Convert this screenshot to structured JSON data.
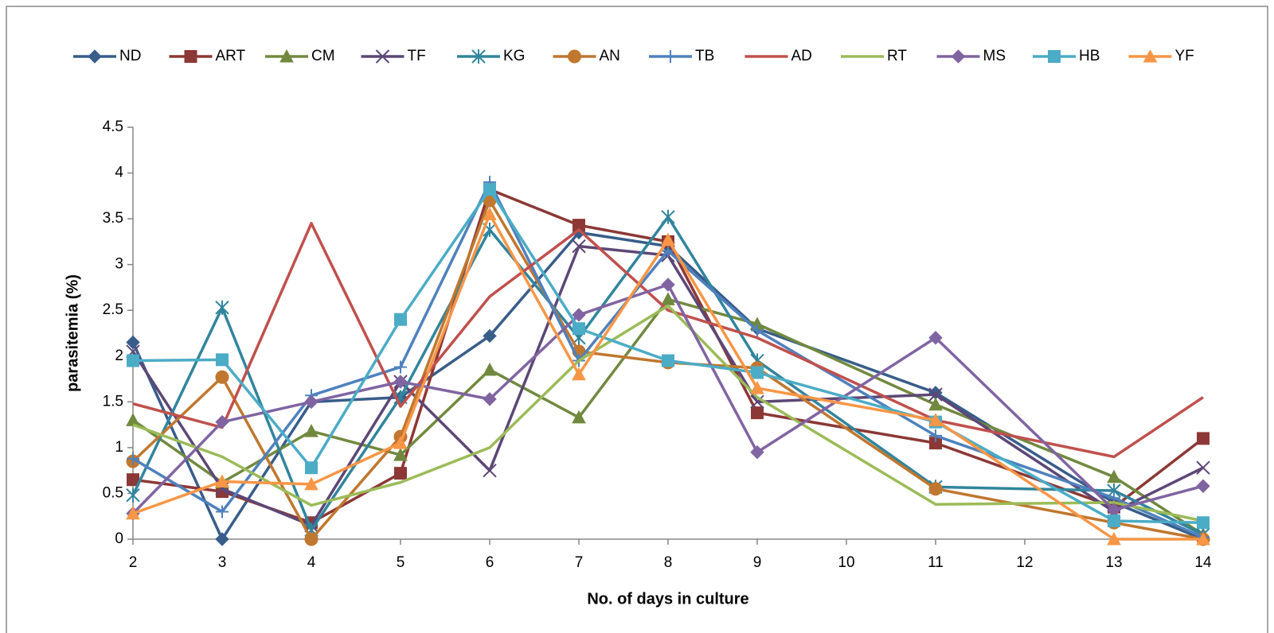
{
  "chart_data": {
    "type": "line",
    "x_label": "No. of days in culture",
    "y_label": "parasitemia (%)",
    "x": [
      2,
      3,
      4,
      5,
      6,
      7,
      8,
      9,
      11,
      13,
      14
    ],
    "xlim": [
      2,
      14
    ],
    "xticks": [
      2,
      3,
      4,
      5,
      6,
      7,
      8,
      9,
      10,
      11,
      12,
      13,
      14
    ],
    "ylim": [
      0,
      4.5
    ],
    "yticks": [
      0,
      0.5,
      1,
      1.5,
      2,
      2.5,
      3,
      3.5,
      4,
      4.5
    ],
    "grid": false,
    "legend": "top",
    "series": [
      {
        "name": "ND",
        "color": "#385d8a",
        "marker": "diamond",
        "values": [
          2.15,
          0,
          1.5,
          1.55,
          2.22,
          3.35,
          3.2,
          2.3,
          1.6,
          0.4,
          0
        ]
      },
      {
        "name": "ART",
        "color": "#8c3836",
        "marker": "square",
        "values": [
          0.65,
          0.52,
          0.18,
          0.72,
          3.82,
          3.43,
          3.25,
          1.38,
          1.05,
          0.35,
          1.1
        ]
      },
      {
        "name": "CM",
        "color": "#71893f",
        "marker": "triangle",
        "values": [
          1.3,
          0.62,
          1.18,
          0.92,
          1.85,
          1.33,
          2.62,
          2.35,
          1.47,
          0.68,
          0.05
        ]
      },
      {
        "name": "TF",
        "color": "#5c4776",
        "marker": "x",
        "values": [
          2.05,
          0.55,
          0.15,
          1.72,
          0.75,
          3.2,
          3.1,
          1.5,
          1.58,
          0.3,
          0.78
        ]
      },
      {
        "name": "KG",
        "color": "#31859c",
        "marker": "star",
        "values": [
          0.48,
          2.53,
          0.1,
          1.55,
          3.38,
          2.2,
          3.52,
          1.95,
          0.57,
          0.53,
          0.05
        ]
      },
      {
        "name": "AN",
        "color": "#c0772f",
        "marker": "circle",
        "values": [
          0.85,
          1.77,
          0,
          1.12,
          3.7,
          2.05,
          1.93,
          1.87,
          0.55,
          0.18,
          0
        ]
      },
      {
        "name": "TB",
        "color": "#4f81bd",
        "marker": "plus",
        "values": [
          0.88,
          0.3,
          1.57,
          1.88,
          3.9,
          1.95,
          3.15,
          2.28,
          1.13,
          0.45,
          0.02
        ]
      },
      {
        "name": "AD",
        "color": "#c0504d",
        "marker": "none",
        "values": [
          1.48,
          1.22,
          3.45,
          1.45,
          2.65,
          3.38,
          2.5,
          2.2,
          1.3,
          0.9,
          1.55
        ]
      },
      {
        "name": "RT",
        "color": "#9bbb59",
        "marker": "none",
        "values": [
          1.25,
          0.9,
          0.37,
          0.62,
          1.0,
          1.95,
          2.55,
          1.55,
          0.38,
          0.4,
          0.2
        ]
      },
      {
        "name": "MS",
        "color": "#8064a2",
        "marker": "diamond",
        "values": [
          0.28,
          1.28,
          1.5,
          1.72,
          1.53,
          2.45,
          2.78,
          0.95,
          2.2,
          0.32,
          0.58
        ]
      },
      {
        "name": "HB",
        "color": "#4bacc6",
        "marker": "square",
        "values": [
          1.95,
          1.96,
          0.78,
          2.4,
          3.82,
          2.3,
          1.95,
          1.82,
          1.28,
          0.2,
          0.18
        ]
      },
      {
        "name": "YF",
        "color": "#f79646",
        "marker": "triangle",
        "values": [
          0.28,
          0.63,
          0.6,
          1.05,
          3.55,
          1.8,
          3.27,
          1.65,
          1.3,
          0,
          0
        ]
      }
    ]
  }
}
